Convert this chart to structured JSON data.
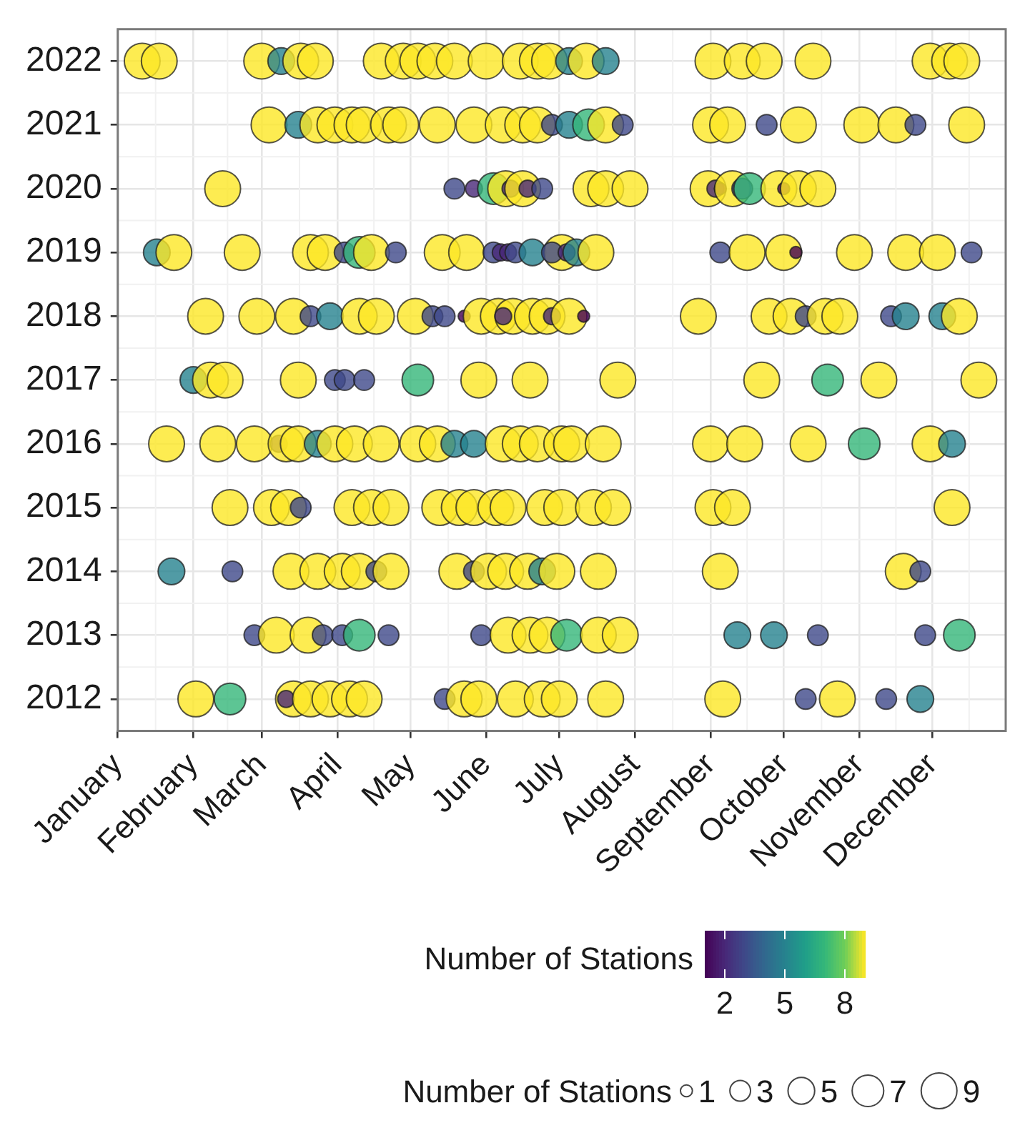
{
  "chart_data": {
    "type": "bubble",
    "grid": true,
    "legend_title": "Number of Stations",
    "size_legend": [
      1,
      3,
      5,
      7,
      9
    ],
    "clabel": "Number of Stations",
    "clim": [
      1,
      9
    ],
    "cticks": [
      2,
      5,
      8
    ],
    "xlim": [
      "--01-01",
      "--12-31"
    ],
    "xticks": [
      {
        "value": "--01-01",
        "label": "January"
      },
      {
        "value": "--02-01",
        "label": "February"
      },
      {
        "value": "--03-01",
        "label": "March"
      },
      {
        "value": "--04-01",
        "label": "April"
      },
      {
        "value": "--05-01",
        "label": "May"
      },
      {
        "value": "--06-01",
        "label": "June"
      },
      {
        "value": "--07-01",
        "label": "July"
      },
      {
        "value": "--08-01",
        "label": "August"
      },
      {
        "value": "--09-01",
        "label": "September"
      },
      {
        "value": "--10-01",
        "label": "October"
      },
      {
        "value": "--11-01",
        "label": "November"
      },
      {
        "value": "--12-01",
        "label": "December"
      }
    ],
    "ylim": [
      2011.5,
      2022.5
    ],
    "yticks": [
      2012,
      2013,
      2014,
      2015,
      2016,
      2017,
      2018,
      2019,
      2020,
      2021,
      2022
    ],
    "series": [
      {
        "x": [
          "--01-11",
          "--01-18",
          "--03-01",
          "--03-09",
          "--03-17",
          "--03-23",
          "--04-19",
          "--04-28",
          "--05-04",
          "--05-11",
          "--05-19",
          "--06-01",
          "--06-15",
          "--06-22",
          "--06-27",
          "--07-05",
          "--07-12",
          "--07-20",
          "--09-02",
          "--09-14",
          "--09-23",
          "--10-13",
          "--11-30",
          "--12-08",
          "--12-13"
        ],
        "values": [
          2022,
          2022,
          2022,
          2022,
          2022,
          2022,
          2022,
          2022,
          2022,
          2022,
          2022,
          2022,
          2022,
          2022,
          2022,
          2022,
          2022,
          2022,
          2022,
          2022,
          2022,
          2022,
          2022,
          2022,
          2022
        ],
        "sizes": [
          9,
          9,
          9,
          5,
          9,
          9,
          9,
          9,
          9,
          9,
          9,
          9,
          9,
          9,
          9,
          5,
          9,
          5,
          9,
          9,
          9,
          9,
          9,
          9,
          9
        ],
        "colors": [
          "#fde725",
          "#fde725",
          "#fde725",
          "#26828e",
          "#fde725",
          "#fde725",
          "#fde725",
          "#fde725",
          "#fde725",
          "#fde725",
          "#fde725",
          "#fde725",
          "#fde725",
          "#fde725",
          "#fde725",
          "#26828e",
          "#fde725",
          "#26828e",
          "#fde725",
          "#fde725",
          "#fde725",
          "#fde725",
          "#fde725",
          "#fde725",
          "#fde725"
        ]
      },
      {
        "x": [
          "--03-04",
          "--03-16",
          "--03-24",
          "--03-31",
          "--04-07",
          "--04-12",
          "--04-22",
          "--04-27",
          "--05-12",
          "--05-27",
          "--06-08",
          "--06-16",
          "--06-22",
          "--06-28",
          "--07-05",
          "--07-13",
          "--07-20",
          "--07-27",
          "--09-01",
          "--09-08",
          "--09-24",
          "--10-07",
          "--11-02",
          "--11-16",
          "--11-24",
          "--12-15"
        ],
        "values": [
          2021,
          2021,
          2021,
          2021,
          2021,
          2021,
          2021,
          2021,
          2021,
          2021,
          2021,
          2021,
          2021,
          2021,
          2021,
          2021,
          2021,
          2021,
          2021,
          2021,
          2021,
          2021,
          2021,
          2021,
          2021,
          2021
        ],
        "sizes": [
          9,
          5,
          9,
          9,
          9,
          9,
          9,
          9,
          9,
          9,
          9,
          9,
          9,
          3,
          5,
          7,
          9,
          3,
          9,
          9,
          3,
          9,
          9,
          9,
          3,
          9
        ],
        "colors": [
          "#fde725",
          "#26828e",
          "#fde725",
          "#fde725",
          "#fde725",
          "#fde725",
          "#fde725",
          "#fde725",
          "#fde725",
          "#fde725",
          "#fde725",
          "#fde725",
          "#fde725",
          "#3e4989",
          "#26828e",
          "#35b779",
          "#fde725",
          "#3e4989",
          "#fde725",
          "#fde725",
          "#3e4989",
          "#fde725",
          "#fde725",
          "#fde725",
          "#3e4989",
          "#fde725"
        ]
      },
      {
        "x": [
          "--02-13",
          "--05-19",
          "--05-27",
          "--06-04",
          "--06-09",
          "--06-11",
          "--06-16",
          "--06-18",
          "--06-24",
          "--07-14",
          "--07-20",
          "--07-30",
          "--08-31",
          "--09-03",
          "--09-05",
          "--09-10",
          "--09-14",
          "--09-17",
          "--09-29",
          "--10-01",
          "--10-07",
          "--10-15"
        ],
        "values": [
          2020,
          2020,
          2020,
          2020,
          2020,
          2020,
          2020,
          2020,
          2020,
          2020,
          2020,
          2020,
          2020,
          2020,
          2020,
          2020,
          2020,
          2020,
          2020,
          2020,
          2020,
          2020
        ],
        "sizes": [
          9,
          3,
          2,
          7,
          9,
          2,
          9,
          2,
          3,
          9,
          9,
          9,
          9,
          2,
          1,
          9,
          3,
          7,
          9,
          1,
          9,
          9
        ],
        "colors": [
          "#fde725",
          "#3e4989",
          "#482878",
          "#35b779",
          "#fde725",
          "#482878",
          "#fde725",
          "#482878",
          "#3e4989",
          "#fde725",
          "#fde725",
          "#fde725",
          "#fde725",
          "#482878",
          "#440154",
          "#fde725",
          "#3e4989",
          "#35b779",
          "#fde725",
          "#440154",
          "#fde725",
          "#fde725"
        ]
      },
      {
        "x": [
          "--01-17",
          "--01-24",
          "--02-21",
          "--03-21",
          "--03-27",
          "--04-04",
          "--04-10",
          "--04-15",
          "--04-25",
          "--05-14",
          "--05-24",
          "--06-04",
          "--06-07",
          "--06-10",
          "--06-13",
          "--06-20",
          "--07-02",
          "--06-28",
          "--07-04",
          "--07-08",
          "--07-16",
          "--09-05",
          "--09-16",
          "--10-01",
          "--10-06",
          "--10-30",
          "--11-20",
          "--12-03",
          "--12-17"
        ],
        "values": [
          2019,
          2019,
          2019,
          2019,
          2019,
          2019,
          2019,
          2019,
          2019,
          2019,
          2019,
          2019,
          2019,
          2019,
          2019,
          2019,
          2019,
          2019,
          2019,
          2019,
          2019,
          2019,
          2019,
          2019,
          2019,
          2019,
          2019,
          2019,
          2019
        ],
        "sizes": [
          5,
          9,
          9,
          9,
          9,
          3,
          7,
          9,
          3,
          9,
          9,
          3,
          2,
          2,
          3,
          5,
          9,
          3,
          2,
          5,
          9,
          3,
          9,
          9,
          1,
          9,
          9,
          9,
          3
        ],
        "colors": [
          "#26828e",
          "#fde725",
          "#fde725",
          "#fde725",
          "#fde725",
          "#3e4989",
          "#35b779",
          "#fde725",
          "#3e4989",
          "#fde725",
          "#fde725",
          "#3e4989",
          "#482878",
          "#482878",
          "#3e4989",
          "#26828e",
          "#fde725",
          "#3e4989",
          "#482878",
          "#26828e",
          "#fde725",
          "#3e4989",
          "#fde725",
          "#fde725",
          "#440154",
          "#fde725",
          "#fde725",
          "#fde725",
          "#3e4989"
        ]
      },
      {
        "x": [
          "--02-06",
          "--02-27",
          "--03-14",
          "--03-21",
          "--03-29",
          "--04-10",
          "--04-17",
          "--05-03",
          "--05-10",
          "--05-15",
          "--05-23",
          "--05-30",
          "--06-06",
          "--06-12",
          "--06-08",
          "--06-20",
          "--06-26",
          "--06-28",
          "--07-05",
          "--07-11",
          "--08-27",
          "--09-25",
          "--10-04",
          "--10-10",
          "--10-18",
          "--10-24",
          "--11-14",
          "--11-20",
          "--12-05",
          "--12-12"
        ],
        "values": [
          2018,
          2018,
          2018,
          2018,
          2018,
          2018,
          2018,
          2018,
          2018,
          2018,
          2018,
          2018,
          2018,
          2018,
          2018,
          2018,
          2018,
          2018,
          2018,
          2018,
          2018,
          2018,
          2018,
          2018,
          2018,
          2018,
          2018,
          2018,
          2018,
          2018
        ],
        "sizes": [
          9,
          9,
          9,
          3,
          5,
          9,
          9,
          9,
          3,
          3,
          1,
          9,
          9,
          9,
          2,
          9,
          9,
          2,
          9,
          1,
          9,
          9,
          9,
          3,
          9,
          9,
          3,
          5,
          5,
          9
        ],
        "colors": [
          "#fde725",
          "#fde725",
          "#fde725",
          "#3e4989",
          "#26828e",
          "#fde725",
          "#fde725",
          "#fde725",
          "#3e4989",
          "#3e4989",
          "#440154",
          "#fde725",
          "#fde725",
          "#fde725",
          "#482878",
          "#fde725",
          "#fde725",
          "#482878",
          "#fde725",
          "#440154",
          "#fde725",
          "#fde725",
          "#fde725",
          "#3e4989",
          "#fde725",
          "#fde725",
          "#3e4989",
          "#26828e",
          "#26828e",
          "#fde725"
        ]
      },
      {
        "x": [
          "--02-01",
          "--02-08",
          "--02-14",
          "--03-16",
          "--03-31",
          "--04-04",
          "--04-12",
          "--05-04",
          "--05-29",
          "--06-19",
          "--07-25",
          "--09-22",
          "--10-19",
          "--11-09",
          "--12-20"
        ],
        "values": [
          2017,
          2017,
          2017,
          2017,
          2017,
          2017,
          2017,
          2017,
          2017,
          2017,
          2017,
          2017,
          2017,
          2017,
          2017
        ],
        "sizes": [
          5,
          9,
          9,
          9,
          3,
          3,
          3,
          7,
          9,
          9,
          9,
          9,
          7,
          9,
          9
        ],
        "colors": [
          "#26828e",
          "#fde725",
          "#fde725",
          "#fde725",
          "#3e4989",
          "#3e4989",
          "#3e4989",
          "#35b779",
          "#fde725",
          "#fde725",
          "#fde725",
          "#fde725",
          "#35b779",
          "#fde725",
          "#fde725"
        ]
      },
      {
        "x": [
          "--01-21",
          "--02-11",
          "--02-26",
          "--03-08",
          "--03-11",
          "--03-16",
          "--03-24",
          "--03-31",
          "--04-08",
          "--04-19",
          "--05-04",
          "--05-12",
          "--05-19",
          "--05-27",
          "--06-08",
          "--06-15",
          "--06-22",
          "--07-02",
          "--07-06",
          "--07-19",
          "--09-01",
          "--09-15",
          "--10-11",
          "--11-03",
          "--11-30",
          "--12-09"
        ],
        "values": [
          2016,
          2016,
          2016,
          2016,
          2016,
          2016,
          2016,
          2016,
          2016,
          2016,
          2016,
          2016,
          2016,
          2016,
          2016,
          2016,
          2016,
          2016,
          2016,
          2016,
          2016,
          2016,
          2016,
          2016,
          2016,
          2016
        ],
        "sizes": [
          9,
          9,
          9,
          2,
          9,
          9,
          5,
          9,
          9,
          9,
          9,
          9,
          5,
          5,
          9,
          9,
          9,
          9,
          9,
          9,
          9,
          9,
          9,
          7,
          9,
          5
        ],
        "colors": [
          "#fde725",
          "#fde725",
          "#fde725",
          "#482878",
          "#fde725",
          "#fde725",
          "#26828e",
          "#fde725",
          "#fde725",
          "#fde725",
          "#fde725",
          "#fde725",
          "#26828e",
          "#26828e",
          "#fde725",
          "#fde725",
          "#fde725",
          "#fde725",
          "#fde725",
          "#fde725",
          "#fde725",
          "#fde725",
          "#fde725",
          "#35b779",
          "#fde725",
          "#26828e"
        ]
      },
      {
        "x": [
          "--02-16",
          "--03-05",
          "--03-12",
          "--03-17",
          "--04-07",
          "--04-15",
          "--04-23",
          "--05-13",
          "--05-21",
          "--05-27",
          "--06-05",
          "--06-10",
          "--06-25",
          "--07-02",
          "--07-15",
          "--07-23",
          "--09-02",
          "--09-10",
          "--12-09"
        ],
        "values": [
          2015,
          2015,
          2015,
          2015,
          2015,
          2015,
          2015,
          2015,
          2015,
          2015,
          2015,
          2015,
          2015,
          2015,
          2015,
          2015,
          2015,
          2015,
          2015
        ],
        "sizes": [
          9,
          9,
          9,
          3,
          9,
          9,
          9,
          9,
          9,
          9,
          9,
          9,
          9,
          9,
          9,
          9,
          9,
          9,
          9
        ],
        "colors": [
          "#fde725",
          "#fde725",
          "#fde725",
          "#3e4989",
          "#fde725",
          "#fde725",
          "#fde725",
          "#fde725",
          "#fde725",
          "#fde725",
          "#fde725",
          "#fde725",
          "#fde725",
          "#fde725",
          "#fde725",
          "#fde725",
          "#fde725",
          "#fde725",
          "#fde725"
        ]
      },
      {
        "x": [
          "--01-23",
          "--02-17",
          "--03-13",
          "--03-24",
          "--04-03",
          "--04-10",
          "--04-17",
          "--04-23",
          "--05-20",
          "--05-27",
          "--06-02",
          "--06-09",
          "--06-18",
          "--06-24",
          "--06-30",
          "--07-17",
          "--09-05",
          "--11-19",
          "--11-26"
        ],
        "values": [
          2014,
          2014,
          2014,
          2014,
          2014,
          2014,
          2014,
          2014,
          2014,
          2014,
          2014,
          2014,
          2014,
          2014,
          2014,
          2014,
          2014,
          2014,
          2014
        ],
        "sizes": [
          5,
          3,
          9,
          9,
          9,
          9,
          3,
          9,
          9,
          3,
          9,
          9,
          9,
          5,
          9,
          9,
          9,
          9,
          3
        ],
        "colors": [
          "#26828e",
          "#3e4989",
          "#fde725",
          "#fde725",
          "#fde725",
          "#fde725",
          "#3e4989",
          "#fde725",
          "#fde725",
          "#3e4989",
          "#fde725",
          "#fde725",
          "#fde725",
          "#26828e",
          "#fde725",
          "#fde725",
          "#fde725",
          "#fde725",
          "#3e4989"
        ]
      },
      {
        "x": [
          "--02-26",
          "--03-07",
          "--03-20",
          "--03-26",
          "--04-03",
          "--04-10",
          "--04-22",
          "--05-30",
          "--06-10",
          "--06-19",
          "--06-26",
          "--07-04",
          "--07-17",
          "--07-26",
          "--09-12",
          "--09-27",
          "--10-15",
          "--11-28",
          "--12-12"
        ],
        "values": [
          2013,
          2013,
          2013,
          2013,
          2013,
          2013,
          2013,
          2013,
          2013,
          2013,
          2013,
          2013,
          2013,
          2013,
          2013,
          2013,
          2013,
          2013,
          2013
        ],
        "sizes": [
          3,
          9,
          9,
          3,
          3,
          7,
          3,
          3,
          9,
          9,
          9,
          7,
          9,
          9,
          5,
          5,
          3,
          3,
          7
        ],
        "colors": [
          "#3e4989",
          "#fde725",
          "#fde725",
          "#3e4989",
          "#3e4989",
          "#35b779",
          "#3e4989",
          "#3e4989",
          "#fde725",
          "#fde725",
          "#fde725",
          "#35b779",
          "#fde725",
          "#fde725",
          "#26828e",
          "#26828e",
          "#3e4989",
          "#3e4989",
          "#35b779"
        ]
      },
      {
        "x": [
          "--02-02",
          "--02-16",
          "--03-14",
          "--03-11",
          "--03-21",
          "--03-29",
          "--04-06",
          "--04-12",
          "--05-15",
          "--05-23",
          "--05-29",
          "--06-13",
          "--06-24",
          "--07-01",
          "--07-20",
          "--09-06",
          "--10-10",
          "--10-23",
          "--11-12",
          "--11-26"
        ],
        "values": [
          2012,
          2012,
          2012,
          2012,
          2012,
          2012,
          2012,
          2012,
          2012,
          2012,
          2012,
          2012,
          2012,
          2012,
          2012,
          2012,
          2012,
          2012,
          2012,
          2012
        ],
        "sizes": [
          9,
          7,
          9,
          2,
          9,
          9,
          9,
          9,
          3,
          9,
          9,
          9,
          9,
          9,
          9,
          9,
          3,
          9,
          3,
          5
        ],
        "colors": [
          "#fde725",
          "#35b779",
          "#fde725",
          "#482878",
          "#fde725",
          "#fde725",
          "#fde725",
          "#fde725",
          "#3e4989",
          "#fde725",
          "#fde725",
          "#fde725",
          "#fde725",
          "#fde725",
          "#fde725",
          "#fde725",
          "#3e4989",
          "#fde725",
          "#3e4989",
          "#26828e"
        ]
      }
    ]
  }
}
